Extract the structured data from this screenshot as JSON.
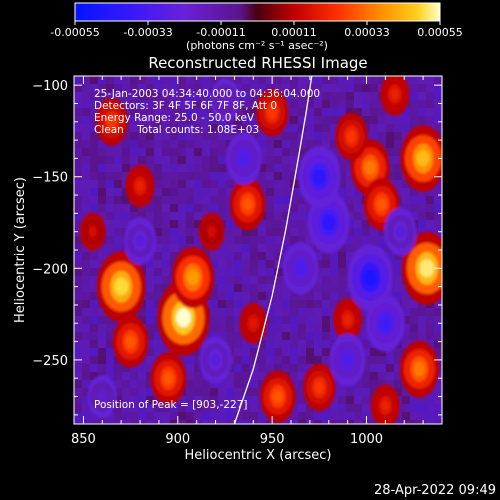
{
  "colorbar": {
    "ticks": [
      "-0.00055",
      "-0.00033",
      "-0.00011",
      "0.00011",
      "0.00033",
      "0.00055"
    ],
    "tick_values": [
      -0.00055,
      -0.00033,
      -0.00011,
      0.00011,
      0.00033,
      0.00055
    ],
    "range": [
      -0.00055,
      0.00055
    ],
    "unit_label": "(photons cm⁻² s⁻¹ asec⁻²)"
  },
  "chart_data": {
    "type": "heatmap",
    "title": "Reconstructed RHESSI Image",
    "xlabel": "Heliocentric X (arcsec)",
    "ylabel": "Heliocentric Y (arcsec)",
    "xlim": [
      845,
      1040
    ],
    "ylim": [
      -285,
      -95
    ],
    "x_ticks": [
      850,
      900,
      950,
      1000
    ],
    "y_ticks": [
      -100,
      -150,
      -200,
      -250
    ],
    "x_tick_labels": [
      "850",
      "900",
      "950",
      "1000"
    ],
    "y_tick_labels": [
      "−100",
      "−150",
      "−200",
      "−250"
    ],
    "colormap": "rainbow (blue-purple-red-orange-yellow-white)",
    "info_lines": [
      "25-Jan-2003 04:34:40.000 to 04:36:04.000",
      "Detectors: 3F 4F 5F 6F 7F 8F, Att 0",
      "Energy Range: 25.0 - 50.0 keV",
      "Clean    Total counts: 1.08E+03"
    ],
    "peak_text": "Position of Peak = [903,-227]",
    "peak_position": [
      903,
      -227
    ],
    "limb_curve": {
      "color": "#ffffff",
      "points": [
        [
          930,
          -285
        ],
        [
          940,
          -255
        ],
        [
          950,
          -215
        ],
        [
          957,
          -180
        ],
        [
          963,
          -145
        ],
        [
          968,
          -115
        ],
        [
          971,
          -95
        ]
      ]
    },
    "intensity_blobs": [
      {
        "x": 903,
        "y": -227,
        "value": 0.00055
      },
      {
        "x": 870,
        "y": -210,
        "value": 0.0005
      },
      {
        "x": 908,
        "y": -205,
        "value": 0.0004
      },
      {
        "x": 895,
        "y": -260,
        "value": 0.0003
      },
      {
        "x": 1032,
        "y": -200,
        "value": 0.00052
      },
      {
        "x": 1030,
        "y": -140,
        "value": 0.00045
      },
      {
        "x": 1028,
        "y": -255,
        "value": 0.00035
      },
      {
        "x": 1002,
        "y": -145,
        "value": 0.00035
      },
      {
        "x": 1008,
        "y": -165,
        "value": 0.0003
      },
      {
        "x": 992,
        "y": -128,
        "value": 0.00025
      },
      {
        "x": 937,
        "y": -165,
        "value": 0.0003
      },
      {
        "x": 950,
        "y": -115,
        "value": 0.00025
      },
      {
        "x": 953,
        "y": -270,
        "value": 0.0003
      },
      {
        "x": 865,
        "y": -120,
        "value": 0.00025
      },
      {
        "x": 880,
        "y": -155,
        "value": 0.0002
      },
      {
        "x": 875,
        "y": -240,
        "value": 0.0003
      },
      {
        "x": 990,
        "y": -228,
        "value": 0.0002
      },
      {
        "x": 975,
        "y": -265,
        "value": 0.00025
      },
      {
        "x": 918,
        "y": -180,
        "value": 0.00015
      },
      {
        "x": 940,
        "y": -230,
        "value": 0.00018
      },
      {
        "x": 1015,
        "y": -105,
        "value": 0.0002
      },
      {
        "x": 1010,
        "y": -275,
        "value": 0.0002
      },
      {
        "x": 855,
        "y": -180,
        "value": 0.00015
      },
      {
        "x": 965,
        "y": -200,
        "value": -0.0003
      },
      {
        "x": 980,
        "y": -175,
        "value": -0.0004
      },
      {
        "x": 1002,
        "y": -205,
        "value": -0.00045
      },
      {
        "x": 1010,
        "y": -230,
        "value": -0.00035
      },
      {
        "x": 990,
        "y": -250,
        "value": -0.0003
      },
      {
        "x": 935,
        "y": -140,
        "value": -0.0003
      },
      {
        "x": 975,
        "y": -150,
        "value": -0.0004
      },
      {
        "x": 880,
        "y": -185,
        "value": -0.00025
      },
      {
        "x": 920,
        "y": -250,
        "value": -0.00025
      },
      {
        "x": 860,
        "y": -270,
        "value": -0.0002
      },
      {
        "x": 925,
        "y": -108,
        "value": -0.0002
      },
      {
        "x": 1018,
        "y": -180,
        "value": -0.00025
      }
    ]
  },
  "footer": {
    "timestamp": "28-Apr-2022 09:49"
  }
}
